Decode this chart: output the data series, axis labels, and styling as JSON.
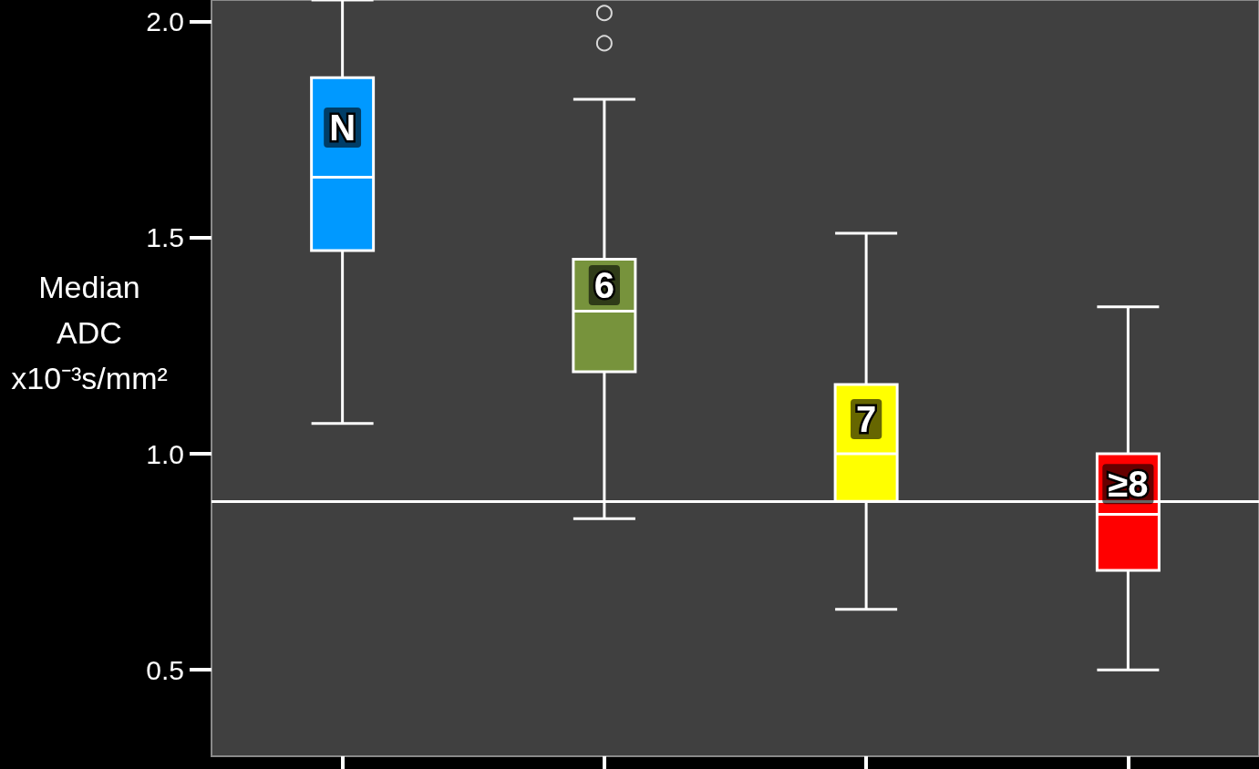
{
  "chart_data": {
    "type": "box",
    "ylabel": "Median ADC x10⁻³s/mm²",
    "categories": [
      "N",
      "6",
      "7",
      "≥8"
    ],
    "colors": [
      "#0099ff",
      "#77933c",
      "#ffff00",
      "#ff0000"
    ],
    "boxes": [
      {
        "low": 1.07,
        "q1": 1.47,
        "median": 1.64,
        "q3": 1.87,
        "high": 2.05
      },
      {
        "low": 0.85,
        "q1": 1.19,
        "median": 1.33,
        "q3": 1.45,
        "high": 1.82,
        "outliers": [
          1.95,
          2.02
        ]
      },
      {
        "low": 0.64,
        "q1": 0.89,
        "median": 1.0,
        "q3": 1.16,
        "high": 1.51
      },
      {
        "low": 0.5,
        "q1": 0.73,
        "median": 0.86,
        "q3": 1.0,
        "high": 1.34
      }
    ],
    "ylim": [
      0.3,
      2.05
    ],
    "yticks": [
      {
        "value": 0.5,
        "label": "0.5"
      },
      {
        "value": 1,
        "label": "1.0"
      },
      {
        "value": 1.5,
        "label": "1.5"
      },
      {
        "value": 2,
        "label": "2.0"
      }
    ],
    "ref_lines": [
      {
        "axis": "y",
        "value": 0.885,
        "color": "#ffffff"
      }
    ],
    "tick_labels": "y",
    "grid": false
  }
}
